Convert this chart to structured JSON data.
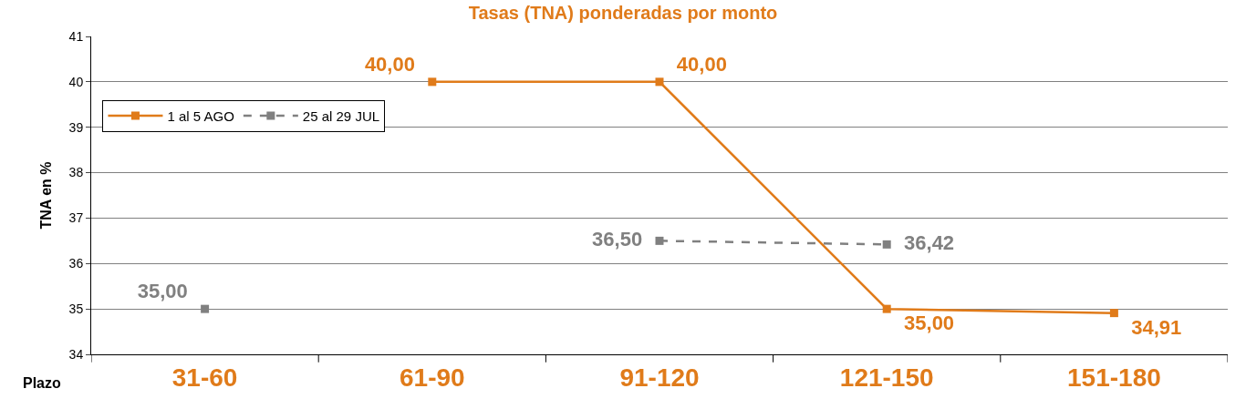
{
  "chart_data": {
    "type": "line",
    "title": "Tasas (TNA) ponderadas por monto",
    "xlabel": "Plazo",
    "ylabel": "TNA en %",
    "categories": [
      "31-60",
      "61-90",
      "91-120",
      "121-150",
      "151-180"
    ],
    "series": [
      {
        "name": "1 al 5 AGO",
        "color": "#e07b1a",
        "values": [
          null,
          40,
          40,
          35,
          34.91
        ],
        "value_labels": [
          null,
          "40,00",
          "40,00",
          "35,00",
          "34,91"
        ],
        "line_style": "solid"
      },
      {
        "name": "25 al 29 JUL",
        "color": "#808080",
        "values": [
          35,
          null,
          36.5,
          36.42,
          null
        ],
        "value_labels": [
          "35,00",
          null,
          "36,50",
          "36,42",
          null
        ],
        "line_style": "dashed"
      }
    ],
    "ylim": [
      34,
      41
    ],
    "yticks": [
      34,
      35,
      36,
      37,
      38,
      39,
      40,
      41
    ],
    "grid": "y",
    "legend": "top left",
    "marker": "square"
  }
}
